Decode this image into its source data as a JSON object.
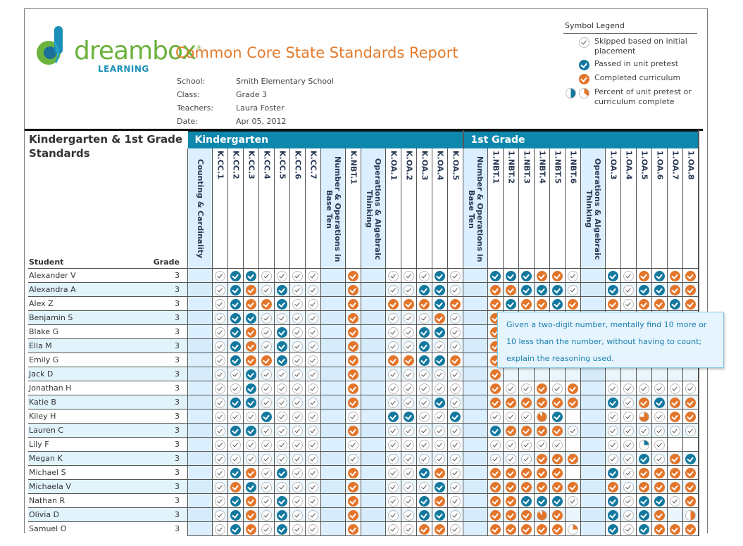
{
  "header": {
    "logo_word": "dreambox",
    "logo_sub": "LEARNING",
    "title": "Common Core State Standards Report",
    "meta": [
      {
        "label": "School:",
        "value": "Smith Elementary School"
      },
      {
        "label": "Class:",
        "value": "Grade 3"
      },
      {
        "label": "Teachers:",
        "value": "Laura Foster"
      },
      {
        "label": "Date:",
        "value": "Apr 05, 2012"
      }
    ]
  },
  "legend": {
    "title": "Symbol Legend",
    "items": [
      {
        "icon": "skipped-check-icon",
        "label": "Skipped based on initial placement"
      },
      {
        "icon": "passed-check-icon",
        "label": "Passed in unit pretest"
      },
      {
        "icon": "completed-check-icon",
        "label": "Completed curriculum"
      },
      {
        "icon": "partial-pie-icon",
        "label": "Percent of unit pretest or curriculum complete"
      }
    ]
  },
  "table": {
    "left_title": "Kindergarten & 1st Grade Standards",
    "student_header": "Student",
    "grade_header": "Grade",
    "bands": [
      {
        "label": "Kindergarten"
      },
      {
        "label": "1st Grade"
      }
    ],
    "columns": [
      {
        "label": "Counting & Cardinality",
        "category": true
      },
      {
        "label": "K.CC.1"
      },
      {
        "label": "K.CC.2"
      },
      {
        "label": "K.CC.3"
      },
      {
        "label": "K.CC.4"
      },
      {
        "label": "K.CC.5"
      },
      {
        "label": "K.CC.6"
      },
      {
        "label": "K.CC.7"
      },
      {
        "label": "Number & Operations in Base Ten",
        "category": true
      },
      {
        "label": "K.NBT.1"
      },
      {
        "label": "Operations & Algebraic Thinking",
        "category": true
      },
      {
        "label": "K.OA.1"
      },
      {
        "label": "K.OA.2"
      },
      {
        "label": "K.OA.3"
      },
      {
        "label": "K.OA.4"
      },
      {
        "label": "K.OA.5"
      },
      {
        "label": "Number & Operations in Base Ten",
        "category": true
      },
      {
        "label": "1.NBT.1"
      },
      {
        "label": "1.NBT.2"
      },
      {
        "label": "1.NBT.3"
      },
      {
        "label": "1.NBT.4"
      },
      {
        "label": "1.NBT.5"
      },
      {
        "label": "1.NBT.6"
      },
      {
        "label": "Operations & Algebraic Thinking",
        "category": true
      },
      {
        "label": "1.OA.3"
      },
      {
        "label": "1.OA.4"
      },
      {
        "label": "1.OA.5"
      },
      {
        "label": "1.OA.6"
      },
      {
        "label": "1.OA.7"
      },
      {
        "label": "1.OA.8"
      }
    ],
    "status_key": {
      "S": "skipped",
      "P": "passed",
      "C": "completed",
      "-": "empty",
      "pC90": "completed 90%",
      "pC25": "completed 25%",
      "pC75": "completed 75%",
      "pP25": "passed 25%",
      "pC50": "completed 50%"
    },
    "rows": [
      {
        "name": "Alexander V",
        "grade": "3",
        "cells": [
          "S",
          "P",
          "P",
          "S",
          "S",
          "S",
          "S",
          "C",
          "S",
          "S",
          "S",
          "P",
          "S",
          "P",
          "P",
          "P",
          "C",
          "C",
          "S",
          "P",
          "S",
          "C",
          "P",
          "C",
          "C"
        ]
      },
      {
        "name": "Alexandra A",
        "grade": "3",
        "cells": [
          "S",
          "P",
          "C",
          "S",
          "P",
          "S",
          "S",
          "C",
          "S",
          "S",
          "P",
          "P",
          "S",
          "C",
          "C",
          "P",
          "P",
          "P",
          "S",
          "P",
          "S",
          "P",
          "P",
          "C",
          "C"
        ]
      },
      {
        "name": "Alex  Z",
        "grade": "3",
        "cells": [
          "S",
          "P",
          "C",
          "C",
          "P",
          "S",
          "S",
          "C",
          "C",
          "C",
          "C",
          "P",
          "C",
          "C",
          "P",
          "C",
          "C",
          "P",
          "C",
          "C",
          "S",
          "C",
          "C",
          "P",
          "C"
        ]
      },
      {
        "name": "Benjamin S",
        "grade": "3",
        "cells": [
          "S",
          "P",
          "P",
          "S",
          "S",
          "S",
          "S",
          "C",
          "S",
          "S",
          "S",
          "C",
          "S",
          "C",
          "C",
          "pC90",
          "C",
          "C",
          "pC25",
          "P",
          "S",
          "C",
          "C",
          "P",
          "C"
        ]
      },
      {
        "name": "Blake G",
        "grade": "3",
        "cells": [
          "S",
          "P",
          "C",
          "S",
          "P",
          "S",
          "S",
          "C",
          "S",
          "S",
          "P",
          "P",
          "S",
          "C",
          "-",
          "-",
          "-",
          "-",
          "-",
          "-",
          "-",
          "-",
          "-",
          "-",
          "-"
        ]
      },
      {
        "name": "Ella M",
        "grade": "3",
        "cells": [
          "S",
          "P",
          "C",
          "S",
          "P",
          "S",
          "S",
          "C",
          "S",
          "S",
          "P",
          "S",
          "S",
          "C",
          "-",
          "-",
          "-",
          "-",
          "-",
          "-",
          "-",
          "-",
          "-",
          "-",
          "-"
        ]
      },
      {
        "name": "Emily G",
        "grade": "3",
        "cells": [
          "S",
          "P",
          "C",
          "C",
          "P",
          "S",
          "S",
          "C",
          "C",
          "C",
          "P",
          "P",
          "C",
          "C",
          "-",
          "-",
          "-",
          "-",
          "-",
          "-",
          "-",
          "-",
          "-",
          "-",
          "-"
        ]
      },
      {
        "name": "Jack D",
        "grade": "3",
        "cells": [
          "S",
          "S",
          "P",
          "S",
          "S",
          "S",
          "S",
          "C",
          "S",
          "S",
          "S",
          "S",
          "S",
          "C",
          "-",
          "-",
          "-",
          "-",
          "-",
          "-",
          "-",
          "-",
          "-",
          "-",
          "-"
        ]
      },
      {
        "name": "Jonathan H",
        "grade": "3",
        "cells": [
          "S",
          "S",
          "P",
          "S",
          "S",
          "S",
          "S",
          "C",
          "S",
          "S",
          "S",
          "S",
          "S",
          "C",
          "S",
          "S",
          "C",
          "S",
          "C",
          "S",
          "S",
          "S",
          "S",
          "S",
          "S"
        ]
      },
      {
        "name": "Katie B",
        "grade": "3",
        "cells": [
          "S",
          "P",
          "P",
          "S",
          "S",
          "S",
          "S",
          "C",
          "S",
          "S",
          "S",
          "P",
          "S",
          "C",
          "C",
          "C",
          "C",
          "C",
          "C",
          "P",
          "S",
          "C",
          "P",
          "C",
          "C"
        ]
      },
      {
        "name": "Kiley  H",
        "grade": "3",
        "cells": [
          "S",
          "S",
          "S",
          "P",
          "S",
          "S",
          "S",
          "S",
          "P",
          "P",
          "S",
          "S",
          "P",
          "S",
          "S",
          "S",
          "pC90",
          "P",
          "-",
          "S",
          "S",
          "pC75",
          "S",
          "C",
          "C"
        ]
      },
      {
        "name": "Lauren C",
        "grade": "3",
        "cells": [
          "S",
          "P",
          "P",
          "S",
          "S",
          "S",
          "S",
          "C",
          "S",
          "S",
          "S",
          "S",
          "S",
          "P",
          "C",
          "C",
          "C",
          "C",
          "S",
          "S",
          "S",
          "S",
          "S",
          "S",
          "S"
        ]
      },
      {
        "name": "Lily F",
        "grade": "3",
        "cells": [
          "S",
          "S",
          "S",
          "S",
          "S",
          "S",
          "S",
          "S",
          "S",
          "S",
          "S",
          "S",
          "S",
          "S",
          "S",
          "S",
          "S",
          "S",
          "-",
          "S",
          "S",
          "pP25",
          "S",
          "-",
          "-"
        ]
      },
      {
        "name": "Megan K",
        "grade": "3",
        "cells": [
          "S",
          "S",
          "S",
          "S",
          "S",
          "S",
          "S",
          "S",
          "S",
          "S",
          "S",
          "S",
          "S",
          "S",
          "S",
          "S",
          "C",
          "C",
          "C",
          "S",
          "S",
          "P",
          "S",
          "C",
          "P"
        ]
      },
      {
        "name": "Michael S",
        "grade": "3",
        "cells": [
          "S",
          "P",
          "C",
          "S",
          "P",
          "S",
          "S",
          "C",
          "S",
          "S",
          "P",
          "C",
          "S",
          "C",
          "C",
          "C",
          "C",
          "C",
          "-",
          "P",
          "S",
          "C",
          "C",
          "C",
          "C"
        ]
      },
      {
        "name": "Michaela V",
        "grade": "3",
        "cells": [
          "S",
          "C",
          "P",
          "S",
          "S",
          "S",
          "S",
          "C",
          "S",
          "S",
          "S",
          "P",
          "S",
          "C",
          "C",
          "C",
          "C",
          "C",
          "C",
          "C",
          "S",
          "C",
          "C",
          "C",
          "C"
        ]
      },
      {
        "name": "Nathan R",
        "grade": "3",
        "cells": [
          "S",
          "P",
          "C",
          "S",
          "P",
          "S",
          "S",
          "C",
          "S",
          "S",
          "P",
          "C",
          "S",
          "C",
          "C",
          "P",
          "P",
          "P",
          "S",
          "P",
          "S",
          "P",
          "P",
          "S",
          "C"
        ]
      },
      {
        "name": "Olivia D",
        "grade": "3",
        "cells": [
          "S",
          "P",
          "C",
          "S",
          "P",
          "S",
          "S",
          "C",
          "S",
          "S",
          "P",
          "P",
          "S",
          "C",
          "C",
          "C",
          "pC90",
          "C",
          "-",
          "P",
          "S",
          "P",
          "C",
          "-",
          "pC50"
        ]
      },
      {
        "name": "Samuel O",
        "grade": "3",
        "cells": [
          "S",
          "P",
          "C",
          "S",
          "P",
          "S",
          "S",
          "C",
          "S",
          "S",
          "C",
          "C",
          "S",
          "C",
          "C",
          "C",
          "C",
          "C",
          "pC25",
          "P",
          "S",
          "P",
          "C",
          "C",
          "C"
        ]
      }
    ]
  },
  "tooltip": {
    "text": "Given a two-digit number, mentally find 10 more or 10 less than the number, without having to count; explain the reasoning used."
  },
  "colors": {
    "brand_orange": "#e37a2b",
    "brand_green": "#6cb33e",
    "brand_blue": "#0e87ad",
    "passed": "#13789e",
    "completed": "#e3752a"
  }
}
